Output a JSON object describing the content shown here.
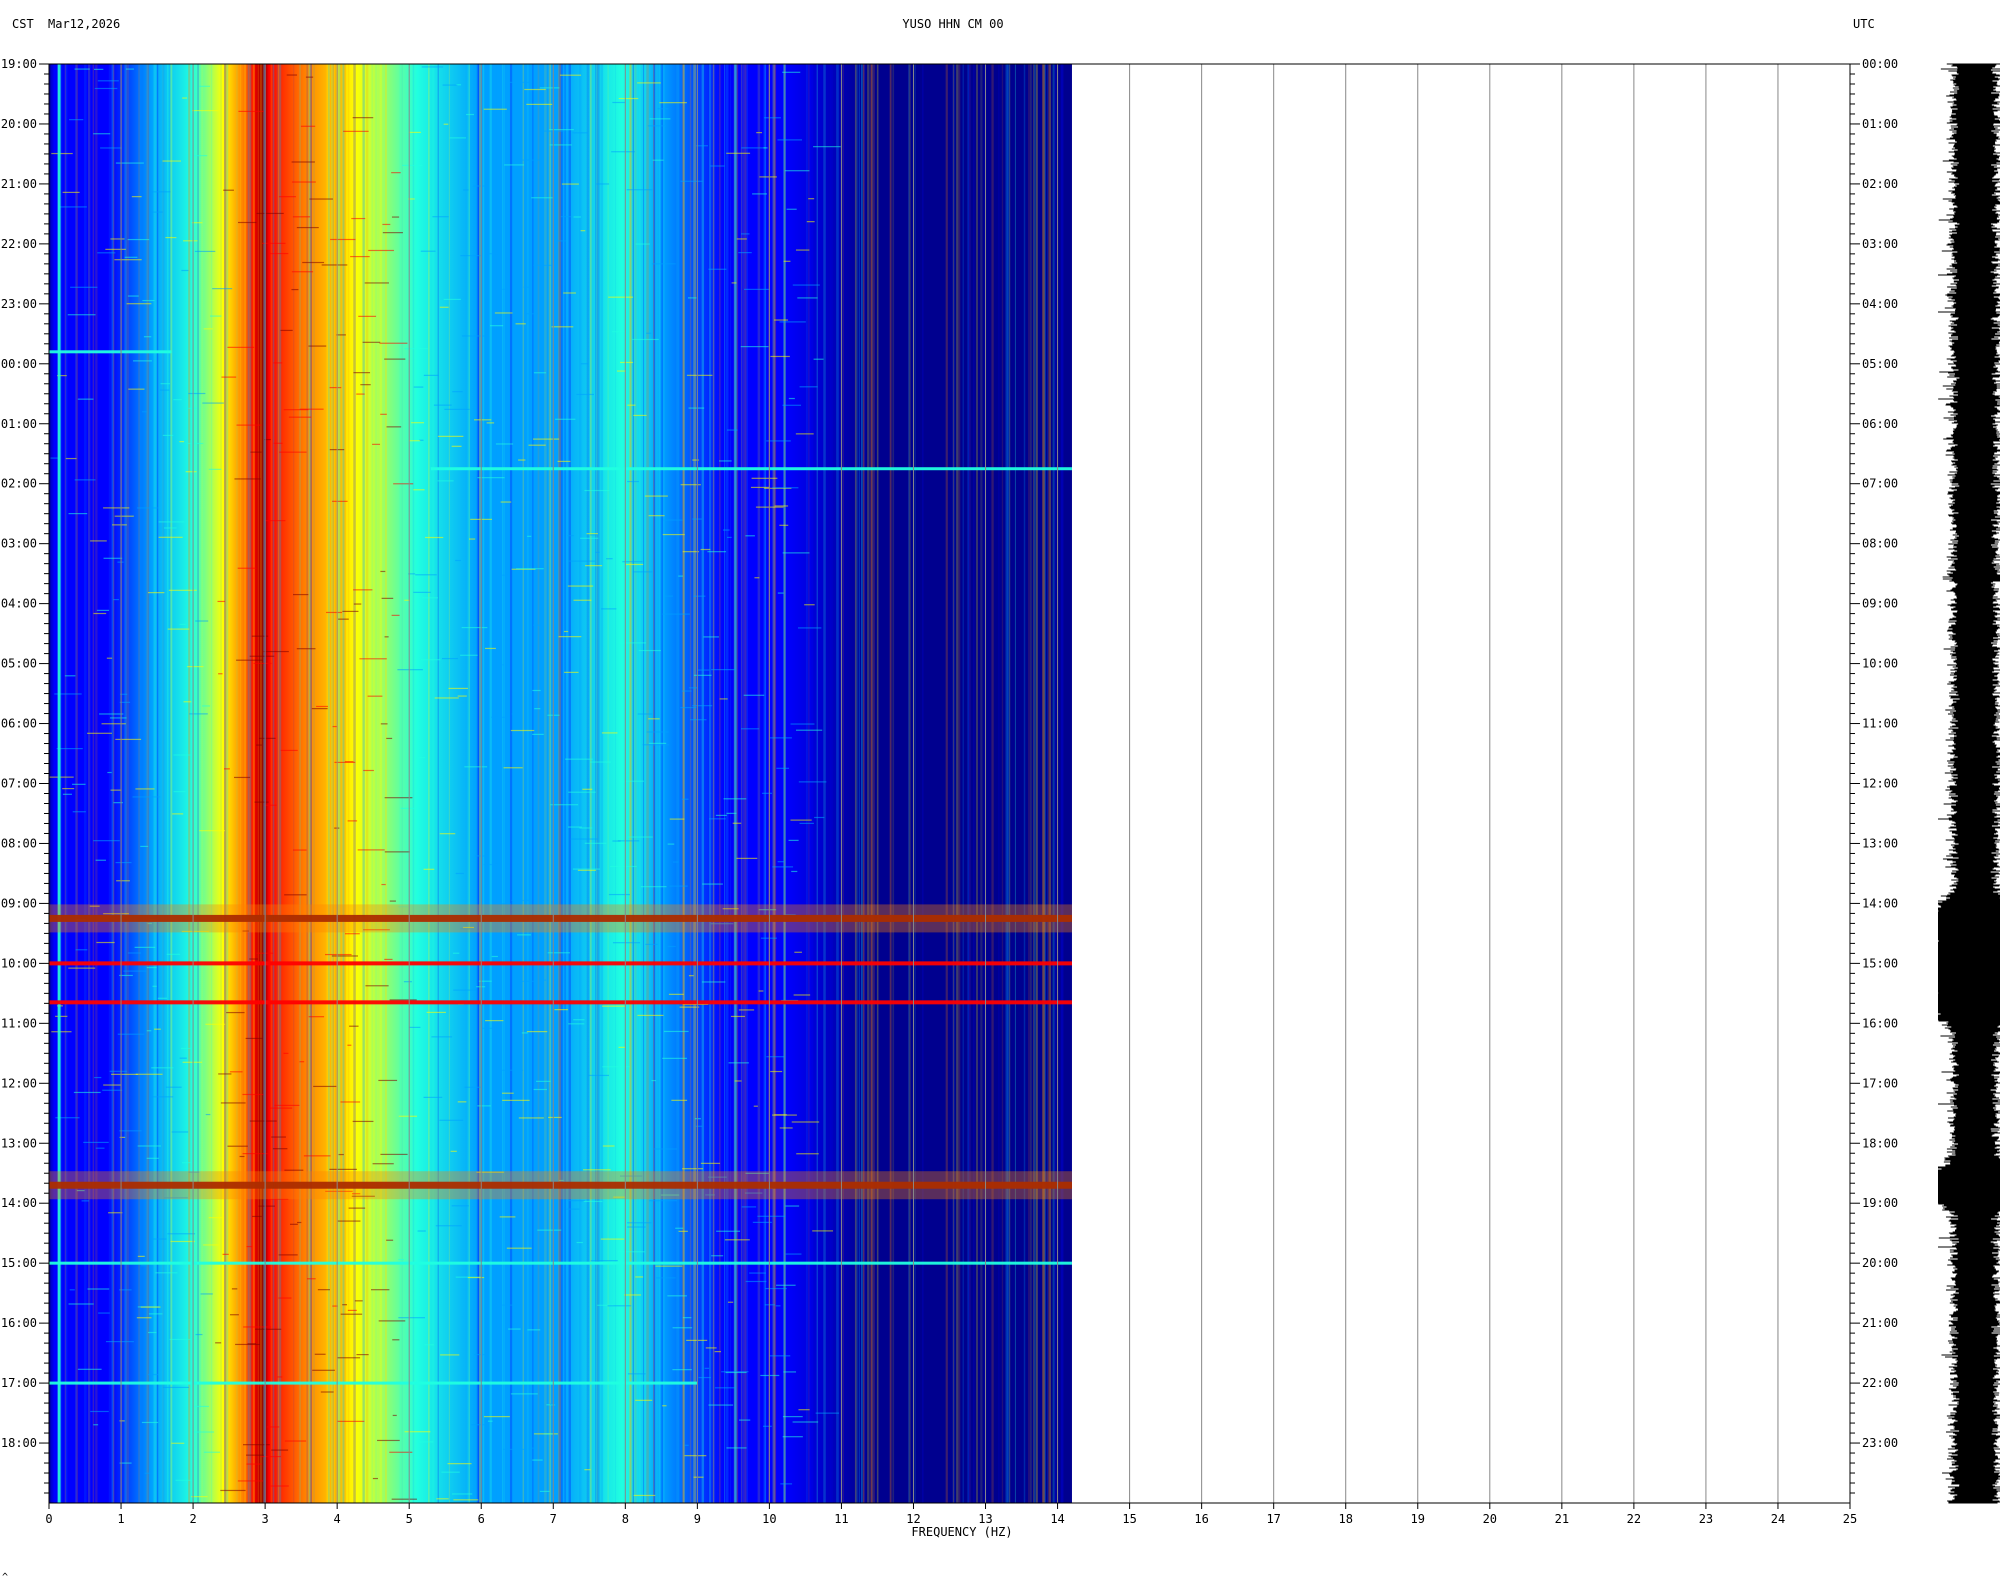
{
  "header": {
    "left_tz": "CST",
    "date": "Mar12,2026",
    "station": "YUSO HHN CM 00",
    "right_tz": "UTC"
  },
  "chart_data": {
    "type": "heatmap",
    "xlabel": "FREQUENCY (HZ)",
    "xlim": [
      0,
      25
    ],
    "data_xmax": 14.2,
    "x_ticks": [
      "0",
      "1",
      "2",
      "3",
      "4",
      "5",
      "6",
      "7",
      "8",
      "9",
      "10",
      "11",
      "12",
      "13",
      "14",
      "15",
      "16",
      "17",
      "18",
      "19",
      "20",
      "21",
      "22",
      "23",
      "24",
      "25"
    ],
    "y_left_ticks": [
      "19:00",
      "20:00",
      "21:00",
      "22:00",
      "23:00",
      "00:00",
      "01:00",
      "02:00",
      "03:00",
      "04:00",
      "05:00",
      "06:00",
      "07:00",
      "08:00",
      "09:00",
      "10:00",
      "11:00",
      "12:00",
      "13:00",
      "14:00",
      "15:00",
      "16:00",
      "17:00",
      "18:00"
    ],
    "y_right_ticks": [
      "00:00",
      "01:00",
      "02:00",
      "03:00",
      "04:00",
      "05:00",
      "06:00",
      "07:00",
      "08:00",
      "09:00",
      "10:00",
      "11:00",
      "12:00",
      "13:00",
      "14:00",
      "15:00",
      "16:00",
      "17:00",
      "18:00",
      "19:00",
      "20:00",
      "21:00",
      "22:00",
      "23:00"
    ],
    "hours_span": 24,
    "energy_bands_hz": [
      {
        "from": 2.3,
        "to": 4.8,
        "level": "high"
      },
      {
        "from": 2.75,
        "to": 3.05,
        "level": "peak"
      },
      {
        "from": 1.0,
        "to": 5.5,
        "level": "medium"
      },
      {
        "from": 5.5,
        "to": 9.8,
        "level": "low"
      }
    ],
    "events": [
      {
        "hour": 4.8,
        "fmax": 1.7,
        "level": "medium"
      },
      {
        "hour": 6.75,
        "fmin": 5.3,
        "fmax": 14.2,
        "level": "medium"
      },
      {
        "hour": 14.25,
        "fmax": 14.2,
        "level": "peak"
      },
      {
        "hour": 15.0,
        "fmax": 14.2,
        "level": "high"
      },
      {
        "hour": 15.65,
        "fmax": 14.2,
        "level": "high"
      },
      {
        "hour": 18.7,
        "fmax": 14.2,
        "level": "peak"
      },
      {
        "hour": 20.0,
        "fmax": 14.2,
        "level": "medium"
      },
      {
        "hour": 22.0,
        "fmax": 9.0,
        "level": "medium"
      }
    ],
    "colormap": [
      "#00008f",
      "#0000ff",
      "#00a0ff",
      "#20ffe0",
      "#ffff00",
      "#ff8000",
      "#ff0000",
      "#800000"
    ],
    "trace_events_hours": [
      14.3,
      15.0,
      15.65,
      18.7
    ]
  },
  "footer": {
    "mark": "^"
  }
}
